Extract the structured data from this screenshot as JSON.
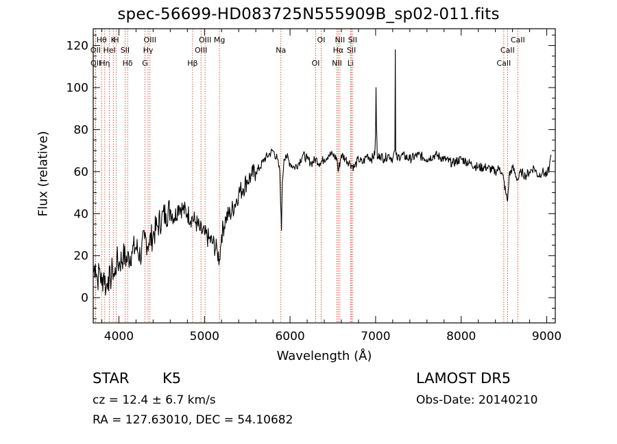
{
  "title": "spec-56699-HD083725N555909B_sp02-011.fits",
  "footer": {
    "class_label": "STAR",
    "subclass": "K5",
    "survey": "LAMOST DR5",
    "cz_text": "cz = 12.4 ± 6.7 km/s",
    "obs_date": "Obs-Date: 20140210",
    "radec": "RA = 127.63010, DEC =  54.10682"
  },
  "chart_data": {
    "type": "line",
    "title": "spec-56699-HD083725N555909B_sp02-011.fits",
    "xlabel": "Wavelength (Å)",
    "ylabel": "Flux (relative)",
    "xlim": [
      3700,
      9100
    ],
    "ylim": [
      -12,
      128
    ],
    "xticks": [
      4000,
      5000,
      6000,
      7000,
      8000,
      9000
    ],
    "yticks": [
      0,
      20,
      40,
      60,
      80,
      100,
      120
    ],
    "grid": false,
    "line_color": "#000000",
    "marker_color": "#cc2200",
    "series": [
      {
        "x": [
          3700,
          3725,
          3750,
          3775,
          3800,
          3825,
          3850,
          3875,
          3900,
          3925,
          3950,
          3975,
          4000,
          4050,
          4100,
          4150,
          4200,
          4250,
          4300,
          4350,
          4400,
          4450,
          4500,
          4550,
          4600,
          4650,
          4700,
          4750,
          4800,
          4850,
          4900,
          4950,
          5000,
          5050,
          5100,
          5150,
          5175,
          5200,
          5250,
          5300,
          5350,
          5400,
          5450,
          5500,
          5550,
          5600,
          5650,
          5700,
          5750,
          5800,
          5850,
          5880,
          5895,
          5900,
          5910,
          5930,
          5950,
          6000,
          6050,
          6100,
          6150,
          6200,
          6250,
          6300,
          6350,
          6400,
          6450,
          6500,
          6550,
          6563,
          6600,
          6650,
          6700,
          6750,
          6800,
          6850,
          6900,
          6950,
          6990,
          7000,
          7005,
          7010,
          7020,
          7050,
          7100,
          7150,
          7200,
          7225,
          7230,
          7235,
          7240,
          7250,
          7300,
          7400,
          7500,
          7600,
          7700,
          7800,
          7900,
          8000,
          8100,
          8200,
          8300,
          8400,
          8450,
          8498,
          8520,
          8542,
          8560,
          8600,
          8662,
          8700,
          8750,
          8800,
          8850,
          8900,
          8950,
          9000,
          9030,
          9050
        ],
        "y": [
          12,
          16,
          8,
          14,
          6,
          12,
          4,
          10,
          8,
          14,
          10,
          18,
          16,
          20,
          18,
          22,
          24,
          20,
          28,
          26,
          30,
          34,
          38,
          40,
          42,
          38,
          44,
          42,
          40,
          38,
          36,
          32,
          30,
          28,
          26,
          22,
          18,
          30,
          38,
          40,
          44,
          50,
          52,
          56,
          58,
          60,
          62,
          66,
          68,
          70,
          66,
          60,
          40,
          32,
          55,
          66,
          68,
          64,
          62,
          64,
          68,
          66,
          64,
          66,
          64,
          66,
          68,
          68,
          66,
          60,
          68,
          66,
          64,
          62,
          66,
          64,
          68,
          66,
          68,
          80,
          100,
          82,
          66,
          68,
          66,
          68,
          66,
          70,
          118,
          70,
          68,
          66,
          68,
          66,
          68,
          66,
          68,
          66,
          64,
          66,
          64,
          62,
          62,
          60,
          62,
          56,
          50,
          46,
          58,
          62,
          56,
          60,
          58,
          60,
          62,
          58,
          60,
          58,
          62,
          68
        ]
      }
    ],
    "line_markers": [
      {
        "label": "Hθ",
        "x": 3798
      },
      {
        "label": "OII",
        "x": 3727
      },
      {
        "label": "OII",
        "x": 3729
      },
      {
        "label": "K",
        "x": 3934
      },
      {
        "label": "HeI",
        "x": 3889
      },
      {
        "label": "Hη",
        "x": 3835
      },
      {
        "label": "H",
        "x": 3969
      },
      {
        "label": "SII",
        "x": 4072
      },
      {
        "label": "Hδ",
        "x": 4102
      },
      {
        "label": "OIII",
        "x": 4363
      },
      {
        "label": "Hγ",
        "x": 4341
      },
      {
        "label": "G",
        "x": 4305
      },
      {
        "label": "OIII",
        "x": 5007
      },
      {
        "label": "OIII",
        "x": 4959
      },
      {
        "label": "Hβ",
        "x": 4861
      },
      {
        "label": "Mg",
        "x": 5175
      },
      {
        "label": "Na",
        "x": 5893
      },
      {
        "label": "OI",
        "x": 6300
      },
      {
        "label": "OI",
        "x": 6364
      },
      {
        "label": "Hα",
        "x": 6563
      },
      {
        "label": "NII",
        "x": 6548
      },
      {
        "label": "NII",
        "x": 6583
      },
      {
        "label": "SII",
        "x": 6717
      },
      {
        "label": "Li",
        "x": 6707
      },
      {
        "label": "SII",
        "x": 6731
      },
      {
        "label": "CaII",
        "x": 8542
      },
      {
        "label": "CaII",
        "x": 8498
      },
      {
        "label": "CaII",
        "x": 8662
      }
    ]
  }
}
